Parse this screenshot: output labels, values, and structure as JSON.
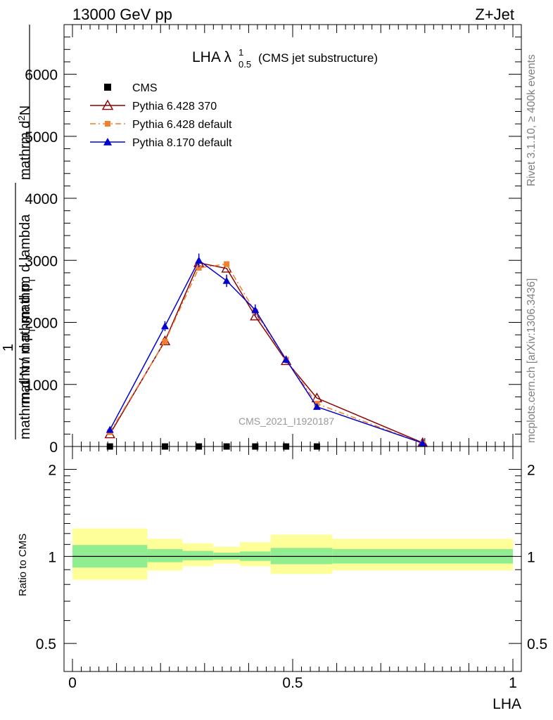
{
  "header": {
    "left": "13000 GeV pp",
    "right": "Z+Jet"
  },
  "side": {
    "rivet": "Rivet 3.1.10, ≥ 400k events",
    "mcplots": "mcplots.cern.ch [arXiv:1306.3436]"
  },
  "chart_data": {
    "type": "line",
    "title_main": "LHA λ",
    "title_sup": "1",
    "title_sub": "0.5",
    "title_rest": "(CMS jet substructure)",
    "watermark": "CMS_2021_I1920187",
    "xlabel": "LHA",
    "ylabel_numerator_parts": [
      "1",
      "mathrm dN"
    ],
    "ylabel_denominator_parts": [
      "mathrm d N / mathrm d p",
      "mathrm d p",
      "mathrm d lambda"
    ],
    "ylabel_numerator_text": "mathrm d²N",
    "ylabel_denominator_text": "mathrm d N / mathrm d p_T mathrm d p_T mathrm d lambda",
    "ylabel_display": {
      "numerator": "mathrm d²N",
      "denominator_a": "mathrm d p  mathrm d lambda",
      "prefix": "1",
      "prefix_den": "mathrm d N / mathrm d p"
    },
    "xlim": [
      0,
      1
    ],
    "ylim": [
      0,
      6800
    ],
    "x_ticks": [
      {
        "v": 0,
        "label": "0"
      },
      {
        "v": 0.5,
        "label": "0.5"
      },
      {
        "v": 1,
        "label": "1"
      }
    ],
    "y_ticks": [
      {
        "v": 0,
        "label": "0"
      },
      {
        "v": 1000,
        "label": "1000"
      },
      {
        "v": 2000,
        "label": "2000"
      },
      {
        "v": 3000,
        "label": "3000"
      },
      {
        "v": 4000,
        "label": "4000"
      },
      {
        "v": 5000,
        "label": "5000"
      },
      {
        "v": 6000,
        "label": "6000"
      }
    ],
    "legend_position": "top-left",
    "series": [
      {
        "name": "CMS",
        "color": "#000000",
        "marker": "square",
        "x": [
          0.085,
          0.21,
          0.287,
          0.35,
          0.415,
          0.485,
          0.555
        ],
        "y": [
          0,
          0,
          0,
          0,
          0,
          0,
          0
        ]
      },
      {
        "name": "Pythia 6.428 370",
        "color": "#8b0000",
        "marker": "triangle-open",
        "x": [
          0.085,
          0.21,
          0.287,
          0.35,
          0.415,
          0.485,
          0.555,
          0.795
        ],
        "y": [
          200,
          1700,
          2960,
          2870,
          2100,
          1380,
          780,
          60
        ]
      },
      {
        "name": "Pythia 6.428 default",
        "color": "#f07f30",
        "marker": "square",
        "x": [
          0.085,
          0.21,
          0.287,
          0.35,
          0.415,
          0.485,
          0.555,
          0.795
        ],
        "y": [
          230,
          1690,
          2880,
          2940,
          2170,
          1400,
          690,
          50
        ]
      },
      {
        "name": "Pythia 8.170 default",
        "color": "#0000d0",
        "marker": "triangle",
        "x": [
          0.085,
          0.21,
          0.287,
          0.35,
          0.415,
          0.485,
          0.555,
          0.795
        ],
        "y": [
          270,
          1940,
          3000,
          2670,
          2200,
          1400,
          640,
          55
        ],
        "yerr": [
          30,
          80,
          110,
          100,
          90,
          60,
          40,
          10
        ]
      }
    ],
    "ratio": {
      "ylabel": "Ratio to CMS",
      "ylim_log": [
        0.4,
        2.4
      ],
      "y_ticks": [
        {
          "v": 0.5,
          "label": "0.5"
        },
        {
          "v": 1,
          "label": "1"
        },
        {
          "v": 2,
          "label": "2"
        }
      ],
      "reference": 1,
      "bands": [
        {
          "x0": 0.0,
          "x1": 0.17,
          "inner": [
            0.915,
            1.095
          ],
          "outer": [
            0.83,
            1.25
          ]
        },
        {
          "x0": 0.17,
          "x1": 0.25,
          "inner": [
            0.955,
            1.06
          ],
          "outer": [
            0.895,
            1.15
          ]
        },
        {
          "x0": 0.25,
          "x1": 0.32,
          "inner": [
            0.97,
            1.045
          ],
          "outer": [
            0.925,
            1.11
          ]
        },
        {
          "x0": 0.32,
          "x1": 0.38,
          "inner": [
            0.975,
            1.03
          ],
          "outer": [
            0.945,
            1.08
          ]
        },
        {
          "x0": 0.38,
          "x1": 0.45,
          "inner": [
            0.965,
            1.04
          ],
          "outer": [
            0.925,
            1.12
          ]
        },
        {
          "x0": 0.45,
          "x1": 0.59,
          "inner": [
            0.94,
            1.07
          ],
          "outer": [
            0.87,
            1.19
          ]
        },
        {
          "x0": 0.59,
          "x1": 1.0,
          "inner": [
            0.945,
            1.06
          ],
          "outer": [
            0.895,
            1.15
          ]
        }
      ],
      "inner_color": "#90ee90",
      "outer_color": "#ffff99"
    }
  }
}
